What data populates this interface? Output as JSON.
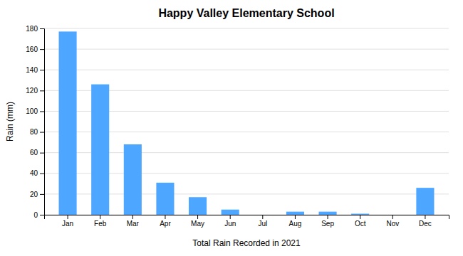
{
  "chart_data": {
    "type": "bar",
    "title": "Happy Valley Elementary School",
    "xlabel": "Total Rain Recorded in 2021",
    "ylabel": "Rain (mm)",
    "categories": [
      "Jan",
      "Feb",
      "Mar",
      "Apr",
      "May",
      "Jun",
      "Jul",
      "Aug",
      "Sep",
      "Oct",
      "Nov",
      "Dec"
    ],
    "values": [
      177,
      126,
      68,
      31,
      17,
      5,
      0,
      3,
      3,
      1,
      0,
      26
    ],
    "color": "#4da6ff",
    "ylim": [
      0,
      180
    ],
    "yticks": [
      0,
      20,
      40,
      60,
      80,
      100,
      120,
      140,
      160,
      180
    ],
    "grid": true
  }
}
